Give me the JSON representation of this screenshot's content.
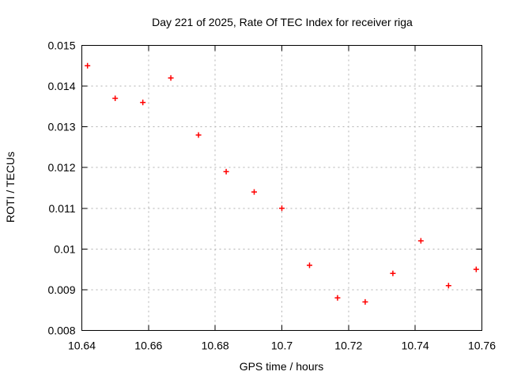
{
  "chart_data": {
    "type": "scatter",
    "title": "Day 221 of 2025, Rate Of TEC Index for receiver riga",
    "xlabel": "GPS time / hours",
    "ylabel": "ROTI / TECUs",
    "xlim": [
      10.64,
      10.76
    ],
    "ylim": [
      0.008,
      0.015
    ],
    "x_tick_values": [
      10.64,
      10.66,
      10.68,
      10.7,
      10.72,
      10.74,
      10.76
    ],
    "x_tick_labels": [
      "10.64",
      "10.66",
      "10.68",
      "10.7",
      "10.72",
      "10.74",
      "10.76"
    ],
    "y_tick_values": [
      0.008,
      0.009,
      0.01,
      0.011,
      0.012,
      0.013,
      0.014,
      0.015
    ],
    "y_tick_labels": [
      "0.008",
      "0.009",
      "0.01",
      "0.011",
      "0.012",
      "0.013",
      "0.014",
      "0.015"
    ],
    "grid": true,
    "legend_position": "none",
    "marker_shape": "plus",
    "series": [
      {
        "name": "ROTI",
        "x": [
          10.6417,
          10.65,
          10.6583,
          10.6667,
          10.675,
          10.6833,
          10.6917,
          10.7,
          10.7083,
          10.7167,
          10.725,
          10.7333,
          10.7417,
          10.75,
          10.7583
        ],
        "y": [
          0.0145,
          0.0137,
          0.0136,
          0.0142,
          0.0128,
          0.0119,
          0.0114,
          0.011,
          0.0096,
          0.0088,
          0.0087,
          0.0094,
          0.0102,
          0.0091,
          0.0095
        ]
      }
    ],
    "colors": {
      "marker": "#ff0000",
      "grid": "#b0b0b0",
      "axis": "#000000",
      "background": "#ffffff",
      "text": "#000000"
    }
  }
}
